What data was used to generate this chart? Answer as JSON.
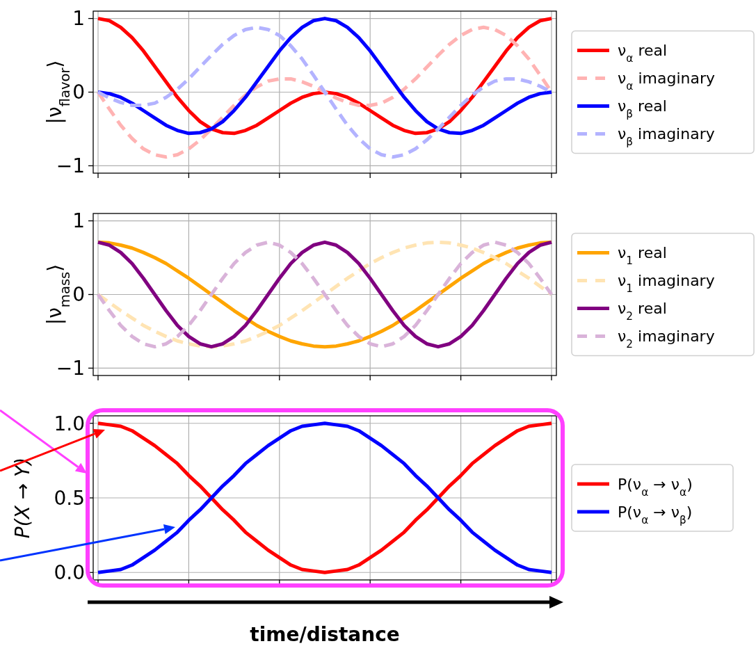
{
  "chart_data": [
    {
      "type": "line",
      "ylabel": "|ν$_{flavor}$⟩",
      "grid": true,
      "legend": "right",
      "tick_labels": "y",
      "categories": [
        null,
        null,
        null,
        null,
        null,
        null,
        null,
        null,
        null,
        null,
        null,
        null,
        null,
        null,
        null,
        null,
        null,
        null,
        null,
        null,
        null,
        null,
        null,
        null,
        null,
        null,
        null,
        null,
        null,
        null,
        null,
        null,
        null,
        null,
        null,
        null,
        null,
        null,
        null,
        null,
        null
      ],
      "ylim": [
        -1.1,
        1.1
      ],
      "yticks": [
        {
          "value": -1,
          "label": "−1"
        },
        {
          "value": 0,
          "label": "0"
        },
        {
          "value": 1,
          "label": "1"
        }
      ],
      "series": [
        {
          "name": "ν$_{α}$ real",
          "color": "#ff0000",
          "line_style": "solid",
          "values": [
            1,
            0.97,
            0.88,
            0.74,
            0.56,
            0.35,
            0.14,
            -0.07,
            -0.25,
            -0.4,
            -0.5,
            -0.55,
            -0.56,
            -0.52,
            -0.45,
            -0.35,
            -0.25,
            -0.15,
            -0.07,
            -0.02,
            0,
            -0.02,
            -0.07,
            -0.15,
            -0.25,
            -0.35,
            -0.45,
            -0.52,
            -0.56,
            -0.55,
            -0.5,
            -0.4,
            -0.25,
            -0.07,
            0.14,
            0.35,
            0.56,
            0.74,
            0.88,
            0.97,
            1
          ]
        },
        {
          "name": "ν$_{α}$ imaginary",
          "color": "#ffb3b3",
          "line_style": "dashed",
          "values": [
            0,
            -0.23,
            -0.45,
            -0.63,
            -0.77,
            -0.85,
            -0.88,
            -0.85,
            -0.77,
            -0.65,
            -0.5,
            -0.34,
            -0.18,
            -0.04,
            0.07,
            0.15,
            0.18,
            0.18,
            0.14,
            0.08,
            0,
            -0.08,
            -0.14,
            -0.18,
            -0.18,
            -0.15,
            -0.07,
            0.04,
            0.18,
            0.34,
            0.5,
            0.65,
            0.77,
            0.85,
            0.88,
            0.85,
            0.77,
            0.63,
            0.45,
            0.23,
            0
          ]
        },
        {
          "name": "ν$_{β}$ real",
          "color": "#0000ff",
          "line_style": "solid",
          "values": [
            0,
            -0.02,
            -0.07,
            -0.15,
            -0.25,
            -0.35,
            -0.45,
            -0.52,
            -0.56,
            -0.55,
            -0.5,
            -0.4,
            -0.25,
            -0.07,
            0.14,
            0.35,
            0.56,
            0.74,
            0.88,
            0.97,
            1,
            0.97,
            0.88,
            0.74,
            0.56,
            0.35,
            0.14,
            -0.07,
            -0.25,
            -0.4,
            -0.5,
            -0.55,
            -0.56,
            -0.52,
            -0.45,
            -0.35,
            -0.25,
            -0.15,
            -0.07,
            -0.02,
            0
          ]
        },
        {
          "name": "ν$_{β}$ imaginary",
          "color": "#b3b3ff",
          "line_style": "dashed",
          "values": [
            0,
            -0.08,
            -0.14,
            -0.18,
            -0.18,
            -0.15,
            -0.07,
            0.04,
            0.18,
            0.34,
            0.5,
            0.65,
            0.77,
            0.85,
            0.88,
            0.85,
            0.77,
            0.63,
            0.45,
            0.23,
            0,
            -0.23,
            -0.45,
            -0.63,
            -0.77,
            -0.85,
            -0.88,
            -0.85,
            -0.77,
            -0.65,
            -0.5,
            -0.34,
            -0.18,
            -0.04,
            0.07,
            0.15,
            0.18,
            0.18,
            0.14,
            0.08,
            0
          ]
        }
      ]
    },
    {
      "type": "line",
      "ylabel": "|ν$_{mass}$⟩",
      "grid": true,
      "legend": "right",
      "tick_labels": "y",
      "categories": [
        null,
        null,
        null,
        null,
        null,
        null,
        null,
        null,
        null,
        null,
        null,
        null,
        null,
        null,
        null,
        null,
        null,
        null,
        null,
        null,
        null,
        null,
        null,
        null,
        null,
        null,
        null,
        null,
        null,
        null,
        null,
        null,
        null,
        null,
        null,
        null,
        null,
        null,
        null,
        null,
        null
      ],
      "ylim": [
        -1.1,
        1.1
      ],
      "yticks": [
        {
          "value": -1,
          "label": "−1"
        },
        {
          "value": 0,
          "label": "0"
        },
        {
          "value": 1,
          "label": "1"
        }
      ],
      "series": [
        {
          "name": "ν$_{1}$ real",
          "color": "#ffa500",
          "line_style": "solid",
          "values": [
            0.71,
            0.7,
            0.67,
            0.63,
            0.57,
            0.5,
            0.42,
            0.32,
            0.22,
            0.11,
            0,
            -0.11,
            -0.22,
            -0.32,
            -0.42,
            -0.5,
            -0.57,
            -0.63,
            -0.67,
            -0.7,
            -0.71,
            -0.7,
            -0.67,
            -0.63,
            -0.57,
            -0.5,
            -0.42,
            -0.32,
            -0.22,
            -0.11,
            0,
            0.11,
            0.22,
            0.32,
            0.42,
            0.5,
            0.57,
            0.63,
            0.67,
            0.7,
            0.71
          ]
        },
        {
          "name": "ν$_{1}$ imaginary",
          "color": "#ffe4b3",
          "line_style": "dashed",
          "values": [
            0,
            -0.11,
            -0.22,
            -0.32,
            -0.42,
            -0.5,
            -0.57,
            -0.63,
            -0.67,
            -0.7,
            -0.71,
            -0.7,
            -0.67,
            -0.63,
            -0.57,
            -0.5,
            -0.42,
            -0.32,
            -0.22,
            -0.11,
            0,
            0.11,
            0.22,
            0.32,
            0.42,
            0.5,
            0.57,
            0.63,
            0.67,
            0.7,
            0.71,
            0.7,
            0.67,
            0.63,
            0.57,
            0.5,
            0.42,
            0.32,
            0.22,
            0.11,
            0
          ]
        },
        {
          "name": "ν$_{2}$ real",
          "color": "#800080",
          "line_style": "solid",
          "values": [
            0.71,
            0.67,
            0.57,
            0.42,
            0.22,
            0,
            -0.22,
            -0.42,
            -0.57,
            -0.67,
            -0.71,
            -0.67,
            -0.57,
            -0.42,
            -0.22,
            0,
            0.22,
            0.42,
            0.57,
            0.67,
            0.71,
            0.67,
            0.57,
            0.42,
            0.22,
            0,
            -0.22,
            -0.42,
            -0.57,
            -0.67,
            -0.71,
            -0.67,
            -0.57,
            -0.42,
            -0.22,
            0,
            0.22,
            0.42,
            0.57,
            0.67,
            0.71
          ]
        },
        {
          "name": "ν$_{2}$ imaginary",
          "color": "#d9b3d9",
          "line_style": "dashed",
          "values": [
            0,
            -0.22,
            -0.42,
            -0.57,
            -0.67,
            -0.71,
            -0.67,
            -0.57,
            -0.42,
            -0.22,
            0,
            0.22,
            0.42,
            0.57,
            0.67,
            0.71,
            0.67,
            0.57,
            0.42,
            0.22,
            0,
            -0.22,
            -0.42,
            -0.57,
            -0.67,
            -0.71,
            -0.67,
            -0.57,
            -0.42,
            -0.22,
            0,
            0.22,
            0.42,
            0.57,
            0.67,
            0.71,
            0.67,
            0.57,
            0.42,
            0.22,
            0
          ]
        }
      ]
    },
    {
      "type": "line",
      "ylabel": "P(X → Y)",
      "xlabel": "time/distance",
      "grid": true,
      "legend": "right",
      "tick_labels": "y",
      "categories": [
        null,
        null,
        null,
        null,
        null,
        null,
        null,
        null,
        null,
        null,
        null,
        null,
        null,
        null,
        null,
        null,
        null,
        null,
        null,
        null,
        null,
        null,
        null,
        null,
        null,
        null,
        null,
        null,
        null,
        null,
        null,
        null,
        null,
        null,
        null,
        null,
        null,
        null,
        null,
        null,
        null
      ],
      "ylim": [
        -0.05,
        1.05
      ],
      "yticks": [
        {
          "value": 0,
          "label": "0.0"
        },
        {
          "value": 0.5,
          "label": "0.5"
        },
        {
          "value": 1,
          "label": "1.0"
        }
      ],
      "series": [
        {
          "name": "P(ν$_{α}$ → ν$_{α}$)",
          "color": "#ff0000",
          "line_style": "solid",
          "values": [
            1,
            0.99,
            0.98,
            0.95,
            0.9,
            0.85,
            0.79,
            0.73,
            0.65,
            0.58,
            0.5,
            0.42,
            0.35,
            0.27,
            0.21,
            0.15,
            0.1,
            0.05,
            0.02,
            0.01,
            0,
            0.01,
            0.02,
            0.05,
            0.1,
            0.15,
            0.21,
            0.27,
            0.35,
            0.42,
            0.5,
            0.58,
            0.65,
            0.73,
            0.79,
            0.85,
            0.9,
            0.95,
            0.98,
            0.99,
            1
          ]
        },
        {
          "name": "P(ν$_{α}$ → ν$_{β}$)",
          "color": "#0000ff",
          "line_style": "solid",
          "values": [
            0,
            0.01,
            0.02,
            0.05,
            0.1,
            0.15,
            0.21,
            0.27,
            0.35,
            0.42,
            0.5,
            0.58,
            0.65,
            0.73,
            0.79,
            0.85,
            0.9,
            0.95,
            0.98,
            0.99,
            1,
            0.99,
            0.98,
            0.95,
            0.9,
            0.85,
            0.79,
            0.73,
            0.65,
            0.58,
            0.5,
            0.42,
            0.35,
            0.27,
            0.21,
            0.15,
            0.1,
            0.05,
            0.02,
            0.01,
            0
          ]
        }
      ]
    }
  ]
}
